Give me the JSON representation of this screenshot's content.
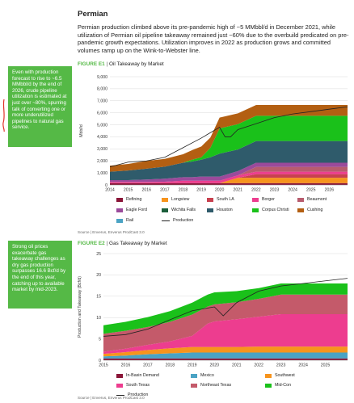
{
  "page": {
    "section_title": "Permian",
    "lead_paragraph": "Permian production climbed above its pre-pandemic high of ~5 MMbbl/d in December 2021, while utilization of Permian oil pipeline takeaway remained just ~60% due to the overbuild predicated on pre-pandemic growth expectations. Utilization improves in 2022 as production grows and committed volumes ramp up on the Wink-to-Webster line.",
    "callout_1": "Even with production forecast to rise to ~6.5 MMbbl/d by the end of 2026, crude pipeline utilization is estimated at just over ~80%, spurring talk of converting one or more underutilized pipelines to natural gas service.",
    "callout_2": "Strong oil prices exacerbate gas takeaway challenges as dry gas production surpasses 16.6 Bcf/d by the end of this year, catching up to available market by mid-2023.",
    "accent_color": "#55b946"
  },
  "figures": [
    {
      "number": "FIGURE E1",
      "title": "Oil Takeaway by Market",
      "source": "Source | Enverus, Enverus ProdCast 3.0"
    },
    {
      "number": "FIGURE E2",
      "title": "Gas Takeaway by Market",
      "source": "Source | Enverus, Enverus ProdCast 3.0"
    }
  ],
  "chart_data": [
    {
      "type": "area",
      "title": "Oil Takeaway by Market",
      "ylabel": "Mbbl/d",
      "xlabel": "",
      "ylim": [
        0,
        9000
      ],
      "yticks": [
        0,
        1000,
        2000,
        3000,
        4000,
        5000,
        6000,
        7000,
        8000,
        9000
      ],
      "ytick_labels": [
        "0",
        "1,000",
        "2,000",
        "3,000",
        "4,000",
        "5,000",
        "6,000",
        "7,000",
        "8,000",
        "9,000"
      ],
      "xlim": [
        2014,
        2027
      ],
      "xticks": [
        2014,
        2015,
        2016,
        2017,
        2018,
        2019,
        2020,
        2021,
        2022,
        2023,
        2024,
        2025,
        2026
      ],
      "x": [
        2014,
        2015,
        2016,
        2017,
        2018,
        2018.5,
        2019,
        2019.5,
        2020,
        2021,
        2022,
        2023,
        2024,
        2025,
        2026,
        2027
      ],
      "series": [
        {
          "name": "Refining",
          "color": "#8a1538",
          "values": [
            150,
            150,
            150,
            150,
            150,
            150,
            150,
            150,
            150,
            150,
            150,
            150,
            150,
            150,
            150,
            150
          ]
        },
        {
          "name": "Longview",
          "color": "#f7941d",
          "values": [
            0,
            0,
            0,
            0,
            0,
            0,
            0,
            0,
            0,
            450,
            450,
            450,
            450,
            450,
            450,
            450
          ]
        },
        {
          "name": "South LA",
          "color": "#c8414f",
          "values": [
            0,
            0,
            0,
            0,
            0,
            0,
            0,
            0,
            0,
            0,
            300,
            300,
            300,
            300,
            300,
            300
          ]
        },
        {
          "name": "Borger",
          "color": "#ed3d8f",
          "values": [
            100,
            100,
            100,
            120,
            200,
            200,
            200,
            200,
            200,
            200,
            200,
            200,
            200,
            200,
            200,
            200
          ]
        },
        {
          "name": "Beaumont",
          "color": "#b85c6e",
          "values": [
            0,
            0,
            0,
            0,
            0,
            0,
            0,
            0,
            0,
            0,
            400,
            400,
            400,
            400,
            400,
            400
          ]
        },
        {
          "name": "Eagle Ford",
          "color": "#9b4a9b",
          "values": [
            150,
            150,
            200,
            250,
            300,
            300,
            350,
            350,
            350,
            350,
            350,
            350,
            350,
            350,
            350,
            350
          ]
        },
        {
          "name": "Wichita Falls",
          "color": "#1b5e3b",
          "values": [
            0,
            0,
            0,
            0,
            0,
            0,
            0,
            0,
            0,
            0,
            0,
            0,
            0,
            0,
            0,
            0
          ]
        },
        {
          "name": "Houston",
          "color": "#2f5b6b",
          "values": [
            700,
            800,
            900,
            1000,
            1200,
            1300,
            1400,
            1600,
            1900,
            1800,
            1800,
            1800,
            1800,
            1800,
            1800,
            1800
          ]
        },
        {
          "name": "Corpus Christi",
          "color": "#1ac11a",
          "values": [
            0,
            0,
            0,
            0,
            0,
            150,
            200,
            800,
            2100,
            2100,
            2100,
            2100,
            2100,
            2100,
            2100,
            2100
          ]
        },
        {
          "name": "Cushing",
          "color": "#b35f12",
          "values": [
            500,
            550,
            650,
            650,
            700,
            800,
            900,
            850,
            900,
            900,
            900,
            900,
            900,
            900,
            900,
            900
          ]
        },
        {
          "name": "Rail",
          "color": "#4aa3c4",
          "values": [
            0,
            0,
            0,
            0,
            0,
            0,
            0,
            0,
            0,
            0,
            0,
            0,
            0,
            0,
            0,
            0
          ]
        }
      ],
      "production": {
        "name": "Production",
        "x": [
          2014,
          2015,
          2016,
          2017,
          2018,
          2019,
          2020,
          2020.3,
          2020.6,
          2021,
          2022,
          2023,
          2024,
          2025,
          2026,
          2027
        ],
        "values": [
          1500,
          1900,
          2000,
          2300,
          3100,
          3900,
          4800,
          4000,
          4000,
          4600,
          5100,
          5600,
          5900,
          6100,
          6300,
          6500
        ]
      },
      "legend": [
        "Refining",
        "Longview",
        "South LA",
        "Borger",
        "Beaumont",
        "Eagle Ford",
        "Wichita Falls",
        "Houston",
        "Corpus Christi",
        "Cushing",
        "Rail",
        "Production"
      ]
    },
    {
      "type": "area",
      "title": "Gas Takeaway by Market",
      "ylabel": "Production and Takeaway (Bcf/d)",
      "xlabel": "",
      "ylim": [
        0,
        25
      ],
      "yticks": [
        0,
        5,
        10,
        15,
        20,
        25
      ],
      "ytick_labels": [
        "0",
        "5",
        "10",
        "15",
        "20",
        "25"
      ],
      "xlim": [
        2015,
        2026
      ],
      "xticks": [
        2015,
        2016,
        2017,
        2018,
        2019,
        2020,
        2021,
        2022,
        2023,
        2024,
        2025
      ],
      "x": [
        2015,
        2016,
        2017,
        2018,
        2019,
        2019.7,
        2020,
        2021,
        2022,
        2023,
        2024,
        2025,
        2026
      ],
      "series": [
        {
          "name": "In-Basin Demand",
          "color": "#8a1538",
          "values": [
            0.4,
            0.4,
            0.4,
            0.4,
            0.4,
            0.4,
            0.4,
            0.4,
            0.4,
            0.4,
            0.4,
            0.4,
            0.4
          ]
        },
        {
          "name": "Mexico",
          "color": "#4aa3c4",
          "values": [
            0.5,
            0.7,
            1.0,
            1.2,
            1.4,
            1.4,
            1.4,
            1.4,
            1.4,
            1.4,
            1.4,
            1.4,
            1.4
          ]
        },
        {
          "name": "Southwest",
          "color": "#f7941d",
          "values": [
            0.6,
            0.8,
            1.0,
            1.2,
            1.3,
            1.3,
            1.3,
            1.3,
            1.4,
            1.4,
            1.4,
            1.4,
            1.4
          ]
        },
        {
          "name": "South Texas",
          "color": "#ed3d8f",
          "values": [
            0.5,
            0.8,
            1.2,
            1.6,
            2.6,
            5.5,
            6.0,
            6.5,
            7.0,
            7.6,
            7.6,
            7.6,
            7.6
          ]
        },
        {
          "name": "Northeast Texas",
          "color": "#c45a6a",
          "values": [
            4.2,
            4.2,
            4.2,
            4.6,
            5.0,
            4.0,
            4.0,
            4.0,
            4.2,
            4.6,
            4.6,
            4.6,
            4.6
          ]
        },
        {
          "name": "Mid-Con",
          "color": "#1ac11a",
          "values": [
            2.0,
            2.1,
            2.3,
            2.5,
            2.8,
            2.8,
            2.8,
            2.6,
            2.5,
            2.6,
            2.6,
            2.6,
            2.6
          ]
        }
      ],
      "production": {
        "name": "Production",
        "x": [
          2015,
          2016,
          2017,
          2018,
          2019,
          2020,
          2020.4,
          2021,
          2022,
          2023,
          2024,
          2025,
          2026
        ],
        "values": [
          5.6,
          6.0,
          7.3,
          9.5,
          11.6,
          12.5,
          10.4,
          13.5,
          16.2,
          17.4,
          18.0,
          18.6,
          19.2
        ]
      },
      "legend": [
        "In-Basin Demand",
        "Mexico",
        "Southwest",
        "South Texas",
        "Northeast Texas",
        "Mid-Con",
        "Production"
      ]
    }
  ]
}
